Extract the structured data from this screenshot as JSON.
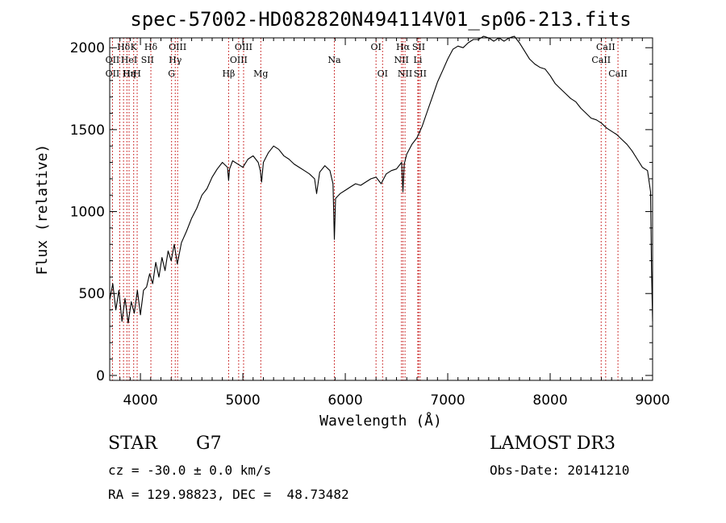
{
  "chart_data": {
    "type": "line",
    "title": "spec-57002-HD082820N494114V01_sp06-213.fits",
    "xlabel": "Wavelength (Å)",
    "ylabel": "Flux (relative)",
    "xlim": [
      3700,
      9000
    ],
    "ylim": [
      -30,
      2060
    ],
    "xticks": [
      4000,
      5000,
      6000,
      7000,
      8000,
      9000
    ],
    "yticks": [
      0,
      500,
      1000,
      1500,
      2000
    ],
    "series": [
      {
        "name": "flux",
        "x": [
          3700,
          3730,
          3760,
          3790,
          3820,
          3850,
          3880,
          3910,
          3940,
          3970,
          4000,
          4030,
          4060,
          4090,
          4120,
          4150,
          4180,
          4210,
          4240,
          4270,
          4300,
          4330,
          4360,
          4400,
          4450,
          4500,
          4550,
          4600,
          4650,
          4700,
          4750,
          4800,
          4850,
          4861,
          4870,
          4900,
          4950,
          5000,
          5050,
          5100,
          5150,
          5170,
          5183,
          5200,
          5250,
          5300,
          5350,
          5400,
          5450,
          5500,
          5550,
          5600,
          5650,
          5700,
          5720,
          5750,
          5800,
          5850,
          5880,
          5893,
          5905,
          5950,
          6000,
          6050,
          6100,
          6150,
          6200,
          6250,
          6300,
          6350,
          6400,
          6450,
          6500,
          6550,
          6563,
          6575,
          6600,
          6650,
          6700,
          6750,
          6800,
          6850,
          6900,
          6950,
          7000,
          7050,
          7100,
          7150,
          7200,
          7250,
          7300,
          7350,
          7400,
          7450,
          7500,
          7550,
          7600,
          7650,
          7700,
          7750,
          7800,
          7850,
          7900,
          7950,
          8000,
          8050,
          8100,
          8150,
          8200,
          8250,
          8300,
          8350,
          8400,
          8450,
          8500,
          8550,
          8600,
          8650,
          8700,
          8750,
          8800,
          8850,
          8900,
          8950,
          8980,
          8990,
          9000
        ],
        "y": [
          460,
          560,
          400,
          520,
          330,
          470,
          320,
          450,
          380,
          520,
          370,
          520,
          540,
          620,
          560,
          690,
          600,
          720,
          640,
          760,
          700,
          800,
          680,
          810,
          880,
          960,
          1020,
          1100,
          1140,
          1210,
          1260,
          1300,
          1270,
          1190,
          1260,
          1310,
          1290,
          1270,
          1320,
          1340,
          1300,
          1250,
          1180,
          1300,
          1360,
          1400,
          1380,
          1340,
          1320,
          1290,
          1270,
          1250,
          1230,
          1200,
          1110,
          1240,
          1280,
          1250,
          1170,
          830,
          1080,
          1110,
          1130,
          1150,
          1170,
          1160,
          1180,
          1200,
          1210,
          1170,
          1230,
          1250,
          1260,
          1300,
          1120,
          1290,
          1350,
          1410,
          1450,
          1520,
          1610,
          1700,
          1790,
          1860,
          1930,
          1990,
          2010,
          2000,
          2030,
          2050,
          2050,
          2070,
          2060,
          2040,
          2060,
          2040,
          2060,
          2070,
          2030,
          1980,
          1930,
          1900,
          1880,
          1870,
          1830,
          1780,
          1750,
          1720,
          1690,
          1670,
          1630,
          1600,
          1570,
          1560,
          1540,
          1510,
          1490,
          1470,
          1440,
          1410,
          1370,
          1320,
          1270,
          1250,
          1120,
          640,
          330
        ]
      }
    ],
    "spectral_lines": [
      {
        "name": "Hδ",
        "row": 0,
        "x": 3835
      },
      {
        "name": "OII",
        "row": 1,
        "x": 3727
      },
      {
        "name": "OII",
        "row": 2,
        "x": 3727
      },
      {
        "name": "Hε",
        "row": 2,
        "x": 3889
      },
      {
        "name": "Hη",
        "row": 2,
        "x": 3889
      },
      {
        "name": "K",
        "row": 0,
        "x": 3934
      },
      {
        "name": "HeI",
        "row": 1,
        "x": 3889
      },
      {
        "name": "SII",
        "row": 1,
        "x": 4069
      },
      {
        "name": "H",
        "row": 2,
        "x": 3968
      },
      {
        "name": "Hδ",
        "row": 0,
        "x": 4102
      },
      {
        "name": "OIII",
        "row": 0,
        "x": 4363
      },
      {
        "name": "Hγ",
        "row": 1,
        "x": 4340
      },
      {
        "name": "G",
        "row": 2,
        "x": 4304
      },
      {
        "name": "OIII",
        "row": 0,
        "x": 5007
      },
      {
        "name": "OIII",
        "row": 1,
        "x": 4959
      },
      {
        "name": "Hβ",
        "row": 2,
        "x": 4861
      },
      {
        "name": "Mg",
        "row": 2,
        "x": 5175
      },
      {
        "name": "Na",
        "row": 1,
        "x": 5893
      },
      {
        "name": "OI",
        "row": 0,
        "x": 6300
      },
      {
        "name": "OI",
        "row": 2,
        "x": 6364
      },
      {
        "name": "Hα",
        "row": 0,
        "x": 6563
      },
      {
        "name": "NII",
        "row": 1,
        "x": 6548
      },
      {
        "name": "NII",
        "row": 2,
        "x": 6583
      },
      {
        "name": "SII",
        "row": 0,
        "x": 6716
      },
      {
        "name": "Li",
        "row": 1,
        "x": 6708
      },
      {
        "name": "SII",
        "row": 2,
        "x": 6731
      },
      {
        "name": "CaII",
        "row": 0,
        "x": 8542
      },
      {
        "name": "CaII",
        "row": 1,
        "x": 8498
      },
      {
        "name": "CaII",
        "row": 2,
        "x": 8662
      }
    ],
    "line_marker_positions": [
      3727,
      3798,
      3835,
      3868,
      3889,
      3934,
      3968,
      4102,
      4304,
      4340,
      4363,
      4861,
      4959,
      5007,
      5175,
      5893,
      6300,
      6364,
      6548,
      6563,
      6583,
      6708,
      6716,
      6731,
      8498,
      8542,
      8662
    ],
    "grid": false,
    "line_color": "#000000",
    "marker_color": "#c00000"
  },
  "footer": {
    "object_type": "STAR",
    "spectral_class": "G7",
    "survey": "LAMOST DR3",
    "cz": "cz = -30.0 ± 0.0 km/s",
    "obs_date": "Obs-Date: 20141210",
    "coords": "RA = 129.98823, DEC =  48.73482"
  }
}
